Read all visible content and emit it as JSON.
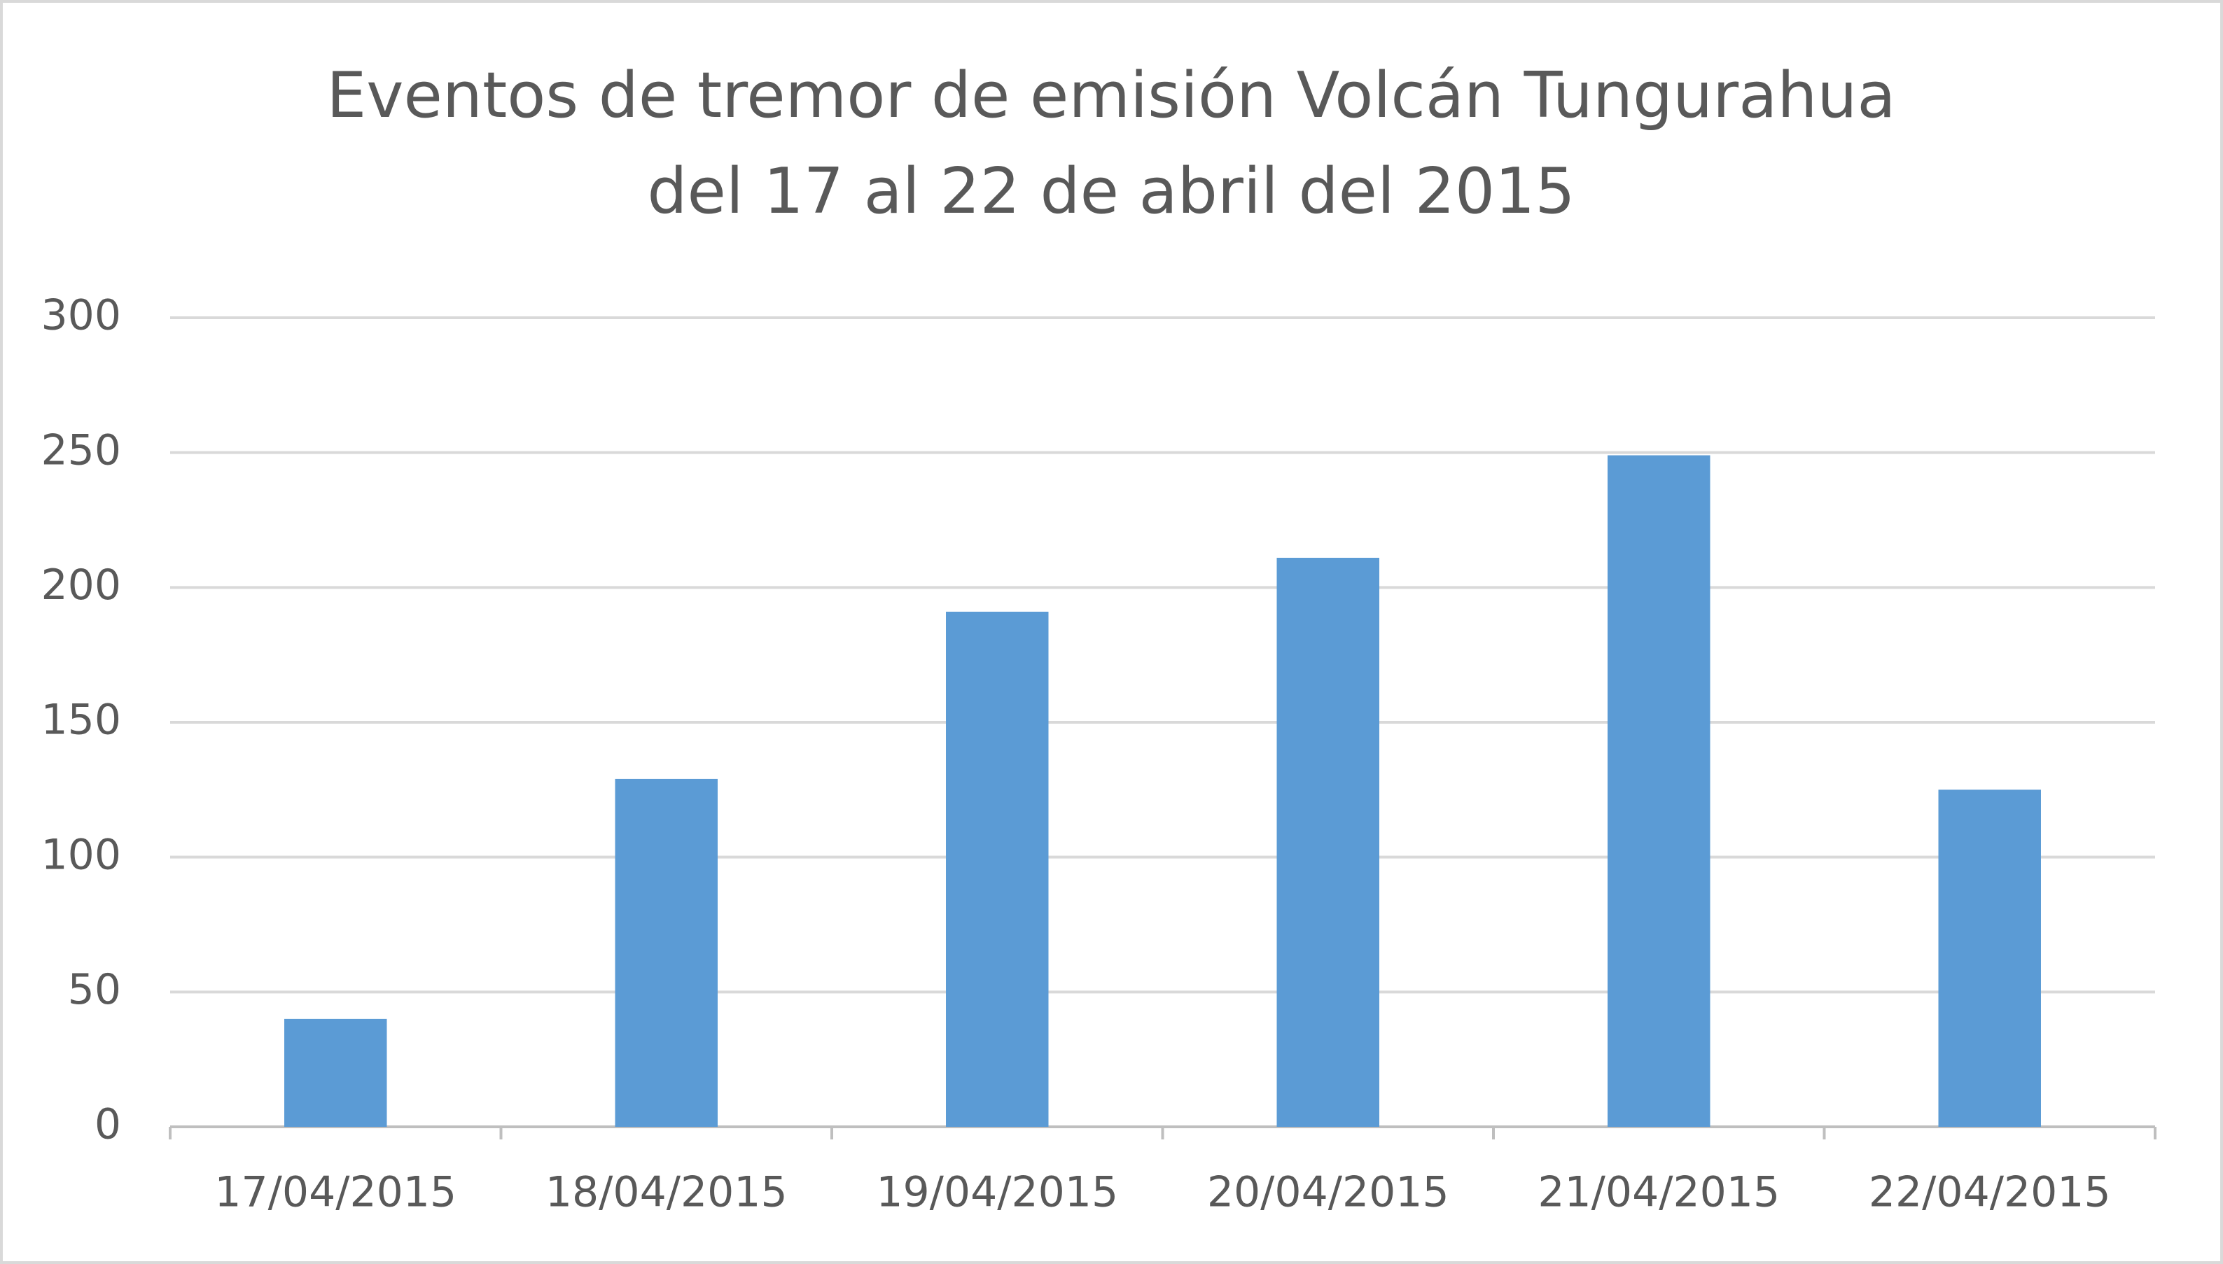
{
  "chart_data": {
    "type": "bar",
    "title": [
      "Eventos de tremor de emisión Volcán Tungurahua",
      "del 17 al 22 de abril del 2015"
    ],
    "categories": [
      "17/04/2015",
      "18/04/2015",
      "19/04/2015",
      "20/04/2015",
      "21/04/2015",
      "22/04/2015"
    ],
    "values": [
      40,
      129,
      191,
      211,
      249,
      125
    ],
    "color": "#5b9bd5",
    "ylim": [
      0,
      300
    ],
    "yticks": [
      0,
      50,
      100,
      150,
      200,
      250,
      300
    ],
    "grid": true
  }
}
